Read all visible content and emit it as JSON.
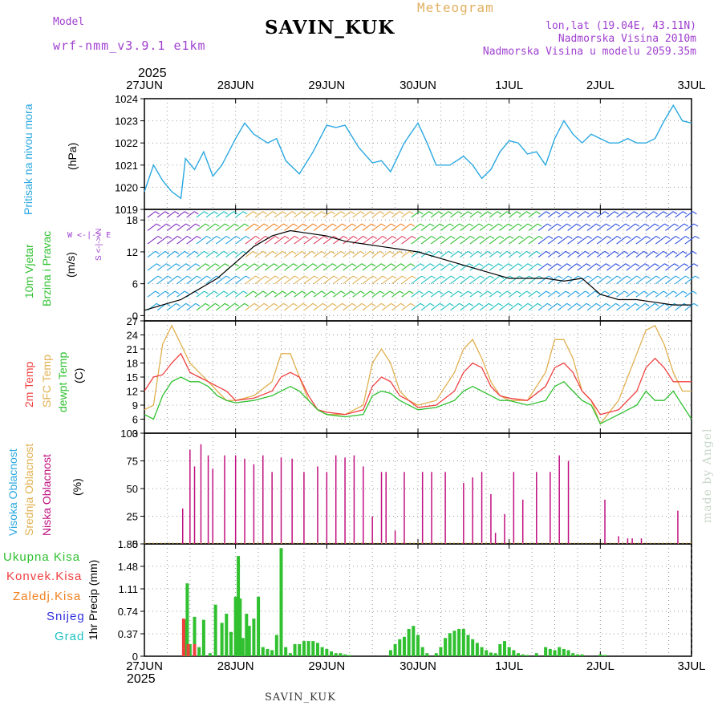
{
  "header": {
    "model_label": "Model",
    "model_name": "wrf-nmm_v3.9.1 e1km",
    "station": "SAVIN_KUK",
    "product": "Meteogram",
    "lonlat": "lon,lat (19.04E, 43.11N)",
    "elevation": "Nadmorska Visina 2010m",
    "model_elevation": "Nadmorska Visina u modelu 2059.35m",
    "year_top": "2025",
    "year_bottom": "2025",
    "footer_station": "SAVIN_KUK",
    "credit": "made by Angel"
  },
  "dates": [
    "27JUN",
    "28JUN",
    "29JUN",
    "30JUN",
    "1JUL",
    "2JUL",
    "3JUL"
  ],
  "panels": {
    "pressure": {
      "label": "Pritisak na nivou mora",
      "unit": "(hPa)",
      "color": "#2aa8e0"
    },
    "wind": {
      "label1": "10m Vjetar",
      "label2": "Brzina i Pravac",
      "unit": "(m/s)",
      "compass": "W <-|-> E",
      "compass2": "S <-|-> N"
    },
    "temp": {
      "label1": "2m Temp",
      "label2": "SFC Temp",
      "label3": "dewpt Temp",
      "unit": "(C)"
    },
    "cloud": {
      "label1": "Visoka Oblacnost",
      "label2": "Srednja Oblacnost",
      "label3": "Niska Oblacnost",
      "unit": "(%)"
    },
    "precip": {
      "unit": "1hr Precip (mm)"
    }
  },
  "precip_legend": [
    {
      "label": "Ukupna Kisa",
      "color": "#30c030"
    },
    {
      "label": "Konvek.Kisa",
      "color": "#f04040"
    },
    {
      "label": "Zaledj.Kisa",
      "color": "#f08020"
    },
    {
      "label": "Snijeg",
      "color": "#3030e0"
    },
    {
      "label": "Grad",
      "color": "#20c0c0"
    }
  ],
  "colors": {
    "pressure": "#2aa8e0",
    "t2m": "#f04040",
    "sfc": "#e0b050",
    "dew": "#30c030",
    "low_cloud": "#c01080",
    "precip": "#30c030",
    "wind_speed": "#000000",
    "gust": "#f04040"
  },
  "chart_data": [
    {
      "type": "line",
      "name": "pressure",
      "ylim": [
        1019,
        1024
      ],
      "yticks": [
        "1019",
        "1020",
        "1021",
        "1022",
        "1023",
        "1024"
      ],
      "x_days": [
        0,
        0.1,
        0.2,
        0.3,
        0.4,
        0.45,
        0.55,
        0.65,
        0.75,
        0.85,
        1.0,
        1.1,
        1.2,
        1.35,
        1.45,
        1.55,
        1.7,
        1.85,
        2.0,
        2.1,
        2.2,
        2.35,
        2.5,
        2.6,
        2.7,
        2.85,
        3.0,
        3.1,
        3.2,
        3.35,
        3.5,
        3.6,
        3.7,
        3.8,
        3.9,
        4.0,
        4.1,
        4.2,
        4.3,
        4.4,
        4.5,
        4.6,
        4.7,
        4.8,
        4.9,
        5.0,
        5.1,
        5.2,
        5.3,
        5.4,
        5.5,
        5.6,
        5.7,
        5.8,
        5.9,
        6.0
      ],
      "values": [
        1019.8,
        1021.0,
        1020.3,
        1019.8,
        1019.5,
        1021.3,
        1020.8,
        1021.6,
        1020.5,
        1021.0,
        1022.2,
        1022.9,
        1022.4,
        1022.0,
        1022.2,
        1021.2,
        1020.6,
        1021.6,
        1022.8,
        1022.7,
        1022.8,
        1021.8,
        1021.1,
        1021.2,
        1020.7,
        1022.0,
        1022.9,
        1022.0,
        1021.0,
        1021.0,
        1021.4,
        1021.0,
        1020.4,
        1020.8,
        1021.6,
        1022.1,
        1022.0,
        1021.5,
        1021.6,
        1021.0,
        1022.2,
        1023.0,
        1022.4,
        1022.0,
        1022.4,
        1022.2,
        1022.0,
        1022.0,
        1022.2,
        1022.0,
        1022.0,
        1022.2,
        1023.0,
        1023.7,
        1023.0,
        1022.9
      ]
    },
    {
      "type": "line",
      "name": "wind",
      "ylim": [
        -1,
        20
      ],
      "yticks": [
        "0",
        "6",
        "12",
        "18"
      ],
      "series": [
        {
          "name": "speed",
          "x_days": [
            0,
            0.2,
            0.4,
            0.6,
            0.8,
            1.0,
            1.2,
            1.4,
            1.6,
            1.8,
            2.0,
            2.2,
            2.4,
            2.6,
            2.8,
            3.0,
            3.2,
            3.4,
            3.6,
            3.8,
            4.0,
            4.2,
            4.4,
            4.6,
            4.8,
            5.0,
            5.2,
            5.4,
            5.6,
            5.8,
            6.0
          ],
          "values": [
            1,
            2,
            3,
            5,
            7,
            10,
            13,
            15,
            16,
            15.5,
            15,
            14,
            13.5,
            13,
            12.5,
            12,
            11,
            10,
            9,
            8,
            7,
            7,
            7,
            6.5,
            7,
            4,
            3,
            3,
            2.5,
            2,
            2
          ]
        }
      ]
    },
    {
      "type": "line",
      "name": "temperature",
      "ylim": [
        3,
        27
      ],
      "yticks": [
        "3",
        "6",
        "9",
        "12",
        "15",
        "18",
        "21",
        "24",
        "27"
      ],
      "series": [
        {
          "name": "2m",
          "x_days": [
            0,
            0.1,
            0.2,
            0.3,
            0.4,
            0.5,
            0.6,
            0.7,
            0.8,
            0.9,
            1.0,
            1.2,
            1.4,
            1.5,
            1.6,
            1.7,
            1.8,
            1.9,
            2.0,
            2.2,
            2.4,
            2.5,
            2.6,
            2.7,
            2.8,
            2.9,
            3.0,
            3.2,
            3.4,
            3.5,
            3.6,
            3.7,
            3.8,
            3.9,
            4.0,
            4.2,
            4.4,
            4.5,
            4.6,
            4.7,
            4.8,
            4.9,
            5.0,
            5.2,
            5.4,
            5.5,
            5.6,
            5.7,
            5.8,
            5.9,
            6.0
          ],
          "values": [
            12,
            15,
            15.5,
            18,
            20,
            16,
            15,
            14,
            13,
            12,
            10,
            10.5,
            12,
            15,
            16,
            15,
            11,
            8,
            7.5,
            7,
            8,
            13,
            15,
            14,
            11,
            10,
            8.5,
            9,
            12,
            16,
            18,
            17,
            13,
            11,
            10.5,
            10,
            13,
            17,
            18,
            16,
            12,
            10,
            7,
            8,
            12,
            17,
            19,
            17,
            14,
            14,
            14
          ]
        },
        {
          "name": "SFC",
          "x_days": [
            0,
            0.1,
            0.2,
            0.3,
            0.4,
            0.5,
            0.6,
            0.7,
            0.8,
            0.9,
            1.0,
            1.2,
            1.4,
            1.5,
            1.6,
            1.7,
            1.8,
            1.9,
            2.0,
            2.2,
            2.4,
            2.5,
            2.6,
            2.7,
            2.8,
            2.9,
            3.0,
            3.2,
            3.4,
            3.5,
            3.6,
            3.7,
            3.8,
            3.9,
            4.0,
            4.2,
            4.4,
            4.5,
            4.6,
            4.7,
            4.8,
            4.9,
            5.0,
            5.2,
            5.4,
            5.5,
            5.6,
            5.7,
            5.8,
            5.9,
            6.0
          ],
          "values": [
            8,
            9,
            22,
            26,
            22,
            18,
            16,
            14,
            12,
            10,
            10,
            11,
            14,
            20,
            20,
            15,
            10,
            8,
            7,
            7,
            9,
            18,
            21,
            18,
            12,
            10,
            9,
            10,
            16,
            21,
            23,
            19,
            14,
            11,
            10,
            10,
            16,
            23,
            23,
            19,
            12,
            10,
            5,
            10,
            20,
            25,
            26,
            22,
            16,
            12,
            12
          ]
        },
        {
          "name": "dewpt",
          "x_days": [
            0,
            0.1,
            0.2,
            0.3,
            0.4,
            0.5,
            0.6,
            0.7,
            0.8,
            0.9,
            1.0,
            1.2,
            1.4,
            1.5,
            1.6,
            1.7,
            1.8,
            1.9,
            2.0,
            2.2,
            2.4,
            2.5,
            2.6,
            2.7,
            2.8,
            2.9,
            3.0,
            3.2,
            3.4,
            3.5,
            3.6,
            3.7,
            3.8,
            3.9,
            4.0,
            4.2,
            4.4,
            4.5,
            4.6,
            4.7,
            4.8,
            4.9,
            5.0,
            5.2,
            5.4,
            5.5,
            5.6,
            5.7,
            5.8,
            5.9,
            6.0
          ],
          "values": [
            7,
            6,
            11,
            14,
            15,
            14,
            14,
            13,
            11,
            10,
            9.5,
            10,
            11,
            12,
            13,
            12,
            10,
            8,
            7,
            6.5,
            7,
            11,
            12,
            11.5,
            10,
            9,
            8,
            8.5,
            10,
            12,
            13,
            12,
            11,
            10,
            10,
            9,
            10,
            13,
            14,
            12,
            10,
            9,
            5,
            7,
            9,
            12,
            10,
            10,
            12,
            9,
            6
          ]
        }
      ]
    },
    {
      "type": "bar",
      "name": "cloud",
      "ylim": [
        0,
        100
      ],
      "yticks": [
        "0",
        "25",
        "50",
        "75",
        "100"
      ],
      "series": [
        {
          "name": "low",
          "x_days": [
            0.42,
            0.5,
            0.55,
            0.62,
            0.7,
            0.75,
            0.88,
            1.0,
            1.1,
            1.2,
            1.3,
            1.4,
            1.5,
            1.62,
            1.75,
            1.9,
            2.0,
            2.1,
            2.2,
            2.3,
            2.4,
            2.5,
            2.6,
            2.65,
            2.75,
            2.85,
            3.05,
            3.15,
            3.3,
            3.5,
            3.6,
            3.7,
            3.8,
            3.85,
            3.95,
            4.05,
            4.15,
            4.3,
            4.45,
            4.55,
            4.65,
            5.05,
            5.2,
            5.3,
            5.35,
            5.45,
            5.85
          ],
          "values": [
            32,
            85,
            70,
            90,
            80,
            68,
            80,
            80,
            77,
            72,
            80,
            65,
            78,
            77,
            65,
            70,
            65,
            80,
            78,
            80,
            70,
            25,
            65,
            65,
            12,
            65,
            65,
            65,
            65,
            55,
            60,
            65,
            45,
            10,
            27,
            65,
            40,
            65,
            65,
            80,
            75,
            40,
            7,
            5,
            5,
            5,
            30
          ]
        }
      ]
    },
    {
      "type": "bar",
      "name": "precip",
      "ylim": [
        0,
        1.85
      ],
      "yticks": [
        "0",
        "0.37",
        "0.74",
        "1.11",
        "1.48",
        "1.85"
      ],
      "series": [
        {
          "name": "Ukupna Kisa",
          "x_days": [
            0.45,
            0.47,
            0.5,
            0.55,
            0.6,
            0.65,
            0.72,
            0.78,
            0.85,
            0.9,
            0.95,
            1.0,
            1.03,
            1.05,
            1.08,
            1.12,
            1.15,
            1.2,
            1.25,
            1.3,
            1.35,
            1.4,
            1.45,
            1.5,
            1.55,
            1.6,
            1.65,
            1.7,
            1.75,
            1.8,
            1.85,
            1.9,
            1.95,
            2.0,
            2.05,
            2.1,
            2.15,
            2.2,
            2.25,
            2.7,
            2.75,
            2.8,
            2.85,
            2.9,
            2.95,
            3.0,
            3.05,
            3.1,
            3.2,
            3.25,
            3.3,
            3.35,
            3.4,
            3.45,
            3.5,
            3.55,
            3.6,
            3.65,
            3.7,
            3.75,
            3.8,
            3.85,
            3.9,
            3.95,
            4.0,
            4.05,
            4.1,
            4.15,
            4.2,
            4.3,
            4.4,
            4.45,
            4.5,
            4.55,
            4.6,
            4.65,
            4.7,
            4.75,
            4.8,
            5.0,
            5.05
          ],
          "values": [
            0.6,
            1.2,
            0.2,
            0.65,
            0.15,
            0.6,
            0.05,
            0.85,
            0.55,
            0.7,
            0.4,
            0.98,
            1.65,
            0.95,
            0.3,
            0.7,
            0.5,
            0.62,
            0.98,
            0.15,
            0.12,
            0.1,
            0.35,
            1.78,
            0.15,
            0.05,
            0.2,
            0.2,
            0.25,
            0.25,
            0.25,
            0.22,
            0.15,
            0.12,
            0.08,
            0.05,
            0.05,
            0.03,
            0.02,
            0.1,
            0.2,
            0.28,
            0.32,
            0.45,
            0.5,
            0.35,
            0.15,
            0.05,
            0.05,
            0.15,
            0.3,
            0.38,
            0.42,
            0.45,
            0.45,
            0.35,
            0.28,
            0.22,
            0.15,
            0.1,
            0.06,
            0.05,
            0.2,
            0.25,
            0.15,
            0.1,
            0.05,
            0.03,
            0.02,
            0.05,
            0.15,
            0.12,
            0.1,
            0.15,
            0.12,
            0.1,
            0.05,
            0.03,
            0.03,
            0.03,
            0.02
          ]
        },
        {
          "name": "Konvek.Kisa",
          "x_days": [
            0.43,
            0.48,
            0.55
          ],
          "values": [
            0.62,
            0.2,
            0.2
          ]
        }
      ]
    }
  ]
}
